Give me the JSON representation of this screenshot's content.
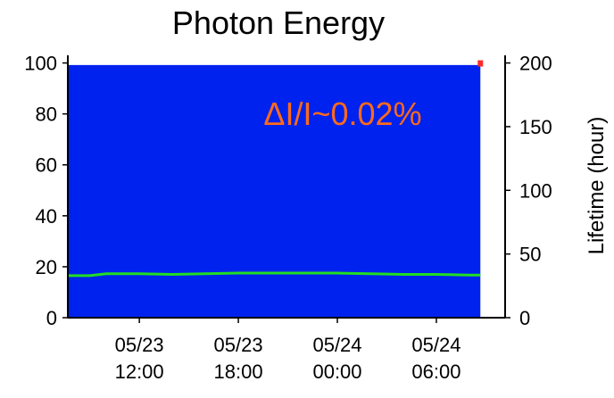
{
  "chart_data": {
    "type": "area",
    "title": "Photon Energy",
    "annotation": "ΔI/I~0.02%",
    "annotation_color": "#ff6a1a",
    "plot_bg_color": "#0022ee",
    "fill_color": "#0022ee",
    "line_color": "#22dd22",
    "marker_color": "#ff2a2a",
    "xlabel": "",
    "ylabel_left": "",
    "ylabel_right": "Lifetime (hour)",
    "x_range": [
      "05/23 07:40",
      "05/24 10:10"
    ],
    "x_ticks": [
      {
        "value": "05/23 12:00",
        "line1": "05/23",
        "line2": "12:00"
      },
      {
        "value": "05/23 18:00",
        "line1": "05/23",
        "line2": "18:00"
      },
      {
        "value": "05/24 00:00",
        "line1": "05/24",
        "line2": "00:00"
      },
      {
        "value": "05/24 06:00",
        "line1": "05/24",
        "line2": "06:00"
      }
    ],
    "y_left": {
      "range": [
        0,
        103
      ],
      "ticks": [
        0,
        20,
        40,
        60,
        80,
        100
      ]
    },
    "y_right": {
      "range": [
        0,
        206
      ],
      "ticks": [
        0,
        50,
        100,
        150,
        200
      ]
    },
    "series": [
      {
        "axis": "left",
        "style": "fill",
        "x": [
          "05/23 07:40",
          "05/24 08:40"
        ],
        "y": [
          99.2,
          99.2
        ]
      },
      {
        "axis": "right",
        "style": "line",
        "x": [
          "05/23 07:40",
          "05/23 09:00",
          "05/23 10:00",
          "05/23 12:00",
          "05/23 14:00",
          "05/23 16:00",
          "05/23 18:00",
          "05/23 20:00",
          "05/23 22:00",
          "05/24 00:00",
          "05/24 02:00",
          "05/24 04:00",
          "05/24 06:00",
          "05/24 08:00",
          "05/24 08:40"
        ],
        "y": [
          33,
          33,
          34.5,
          34.5,
          34,
          34.5,
          35,
          35,
          35,
          35,
          34.5,
          34,
          34,
          33.5,
          33.5
        ]
      },
      {
        "axis": "left",
        "style": "marker",
        "x": [
          "05/24 08:40"
        ],
        "y": [
          100
        ]
      }
    ]
  }
}
